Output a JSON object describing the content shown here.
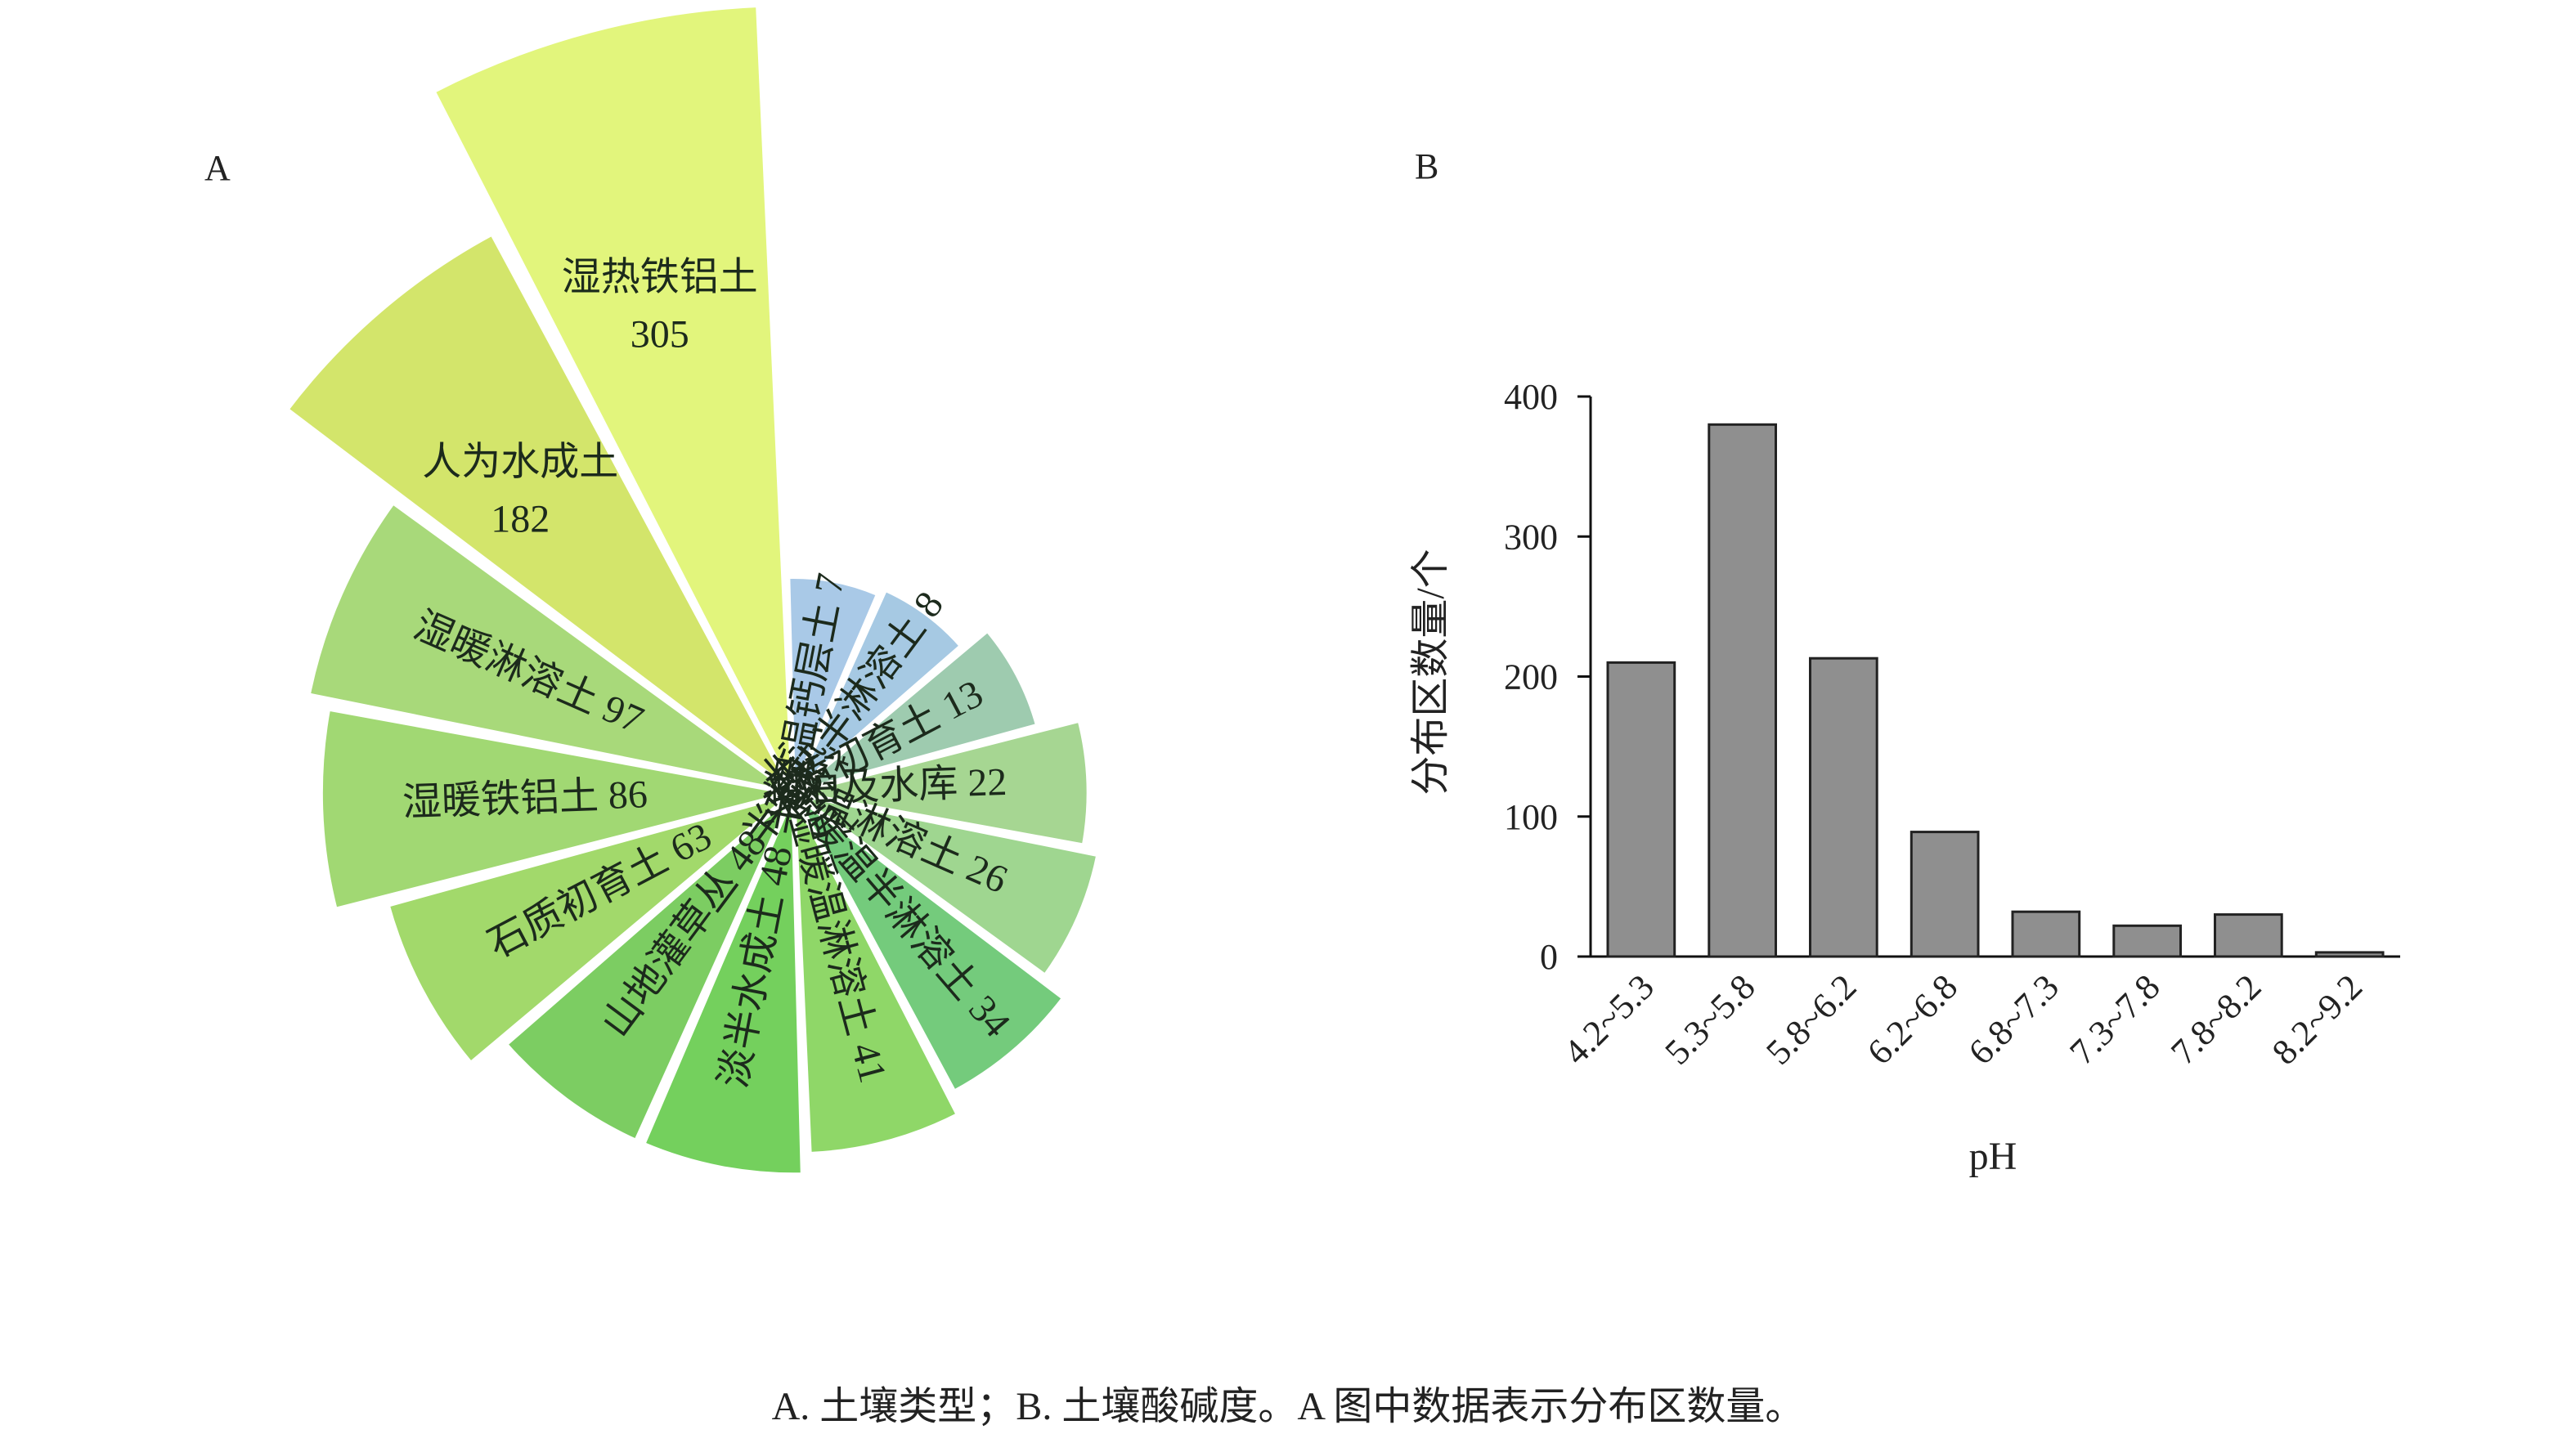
{
  "caption": "A. 土壤类型；B. 土壤酸碱度。A 图中数据表示分布区数量。",
  "chart_data": [
    {
      "panel": "A",
      "type": "pie",
      "slices": [
        {
          "label": "湿热铁铝土",
          "value": 305,
          "color": "#e2f57c"
        },
        {
          "label": "人为水成土",
          "value": 182,
          "color": "#d3e56b"
        },
        {
          "label": "湿暖淋溶土",
          "value": 97,
          "color": "#a8d97a"
        },
        {
          "label": "湿暖铁铝土",
          "value": 86,
          "color": "#a1d873"
        },
        {
          "label": "石质初育土",
          "value": 63,
          "color": "#a2d96b"
        },
        {
          "label": "山地灌草丛",
          "value": 48,
          "color": "#7ccd62"
        },
        {
          "label": "淡半水成土",
          "value": 48,
          "color": "#74d05d"
        },
        {
          "label": "湿暖温淋溶土",
          "value": 41,
          "color": "#8fd768"
        },
        {
          "label": "半湿暖温半淋溶土",
          "value": 34,
          "color": "#74cb7c"
        },
        {
          "label": "湿温淋溶土",
          "value": 26,
          "color": "#9fd690"
        },
        {
          "label": "湖泊及水库",
          "value": 22,
          "color": "#a6d692"
        },
        {
          "label": "土质初育土",
          "value": 13,
          "color": "#9ecbaf"
        },
        {
          "label": "半湿热半淋溶土",
          "value": 8,
          "color": "#a6c9e3"
        },
        {
          "label": "半湿温钙层土",
          "value": 7,
          "color": "#a9c9e7"
        }
      ]
    },
    {
      "panel": "B",
      "type": "bar",
      "categories": [
        "4.2~5.3",
        "5.3~5.8",
        "5.8~6.2",
        "6.2~6.8",
        "6.8~7.3",
        "7.3~7.8",
        "7.8~8.2",
        "8.2~9.2"
      ],
      "values": [
        210,
        380,
        213,
        89,
        32,
        22,
        30,
        3
      ],
      "ylim": [
        0,
        400
      ],
      "yticks": [
        "0",
        "100",
        "200",
        "300",
        "400"
      ],
      "xlabel": "pH",
      "ylabel": "分布区数量/个",
      "bar_color": "#8f8f8f"
    }
  ]
}
